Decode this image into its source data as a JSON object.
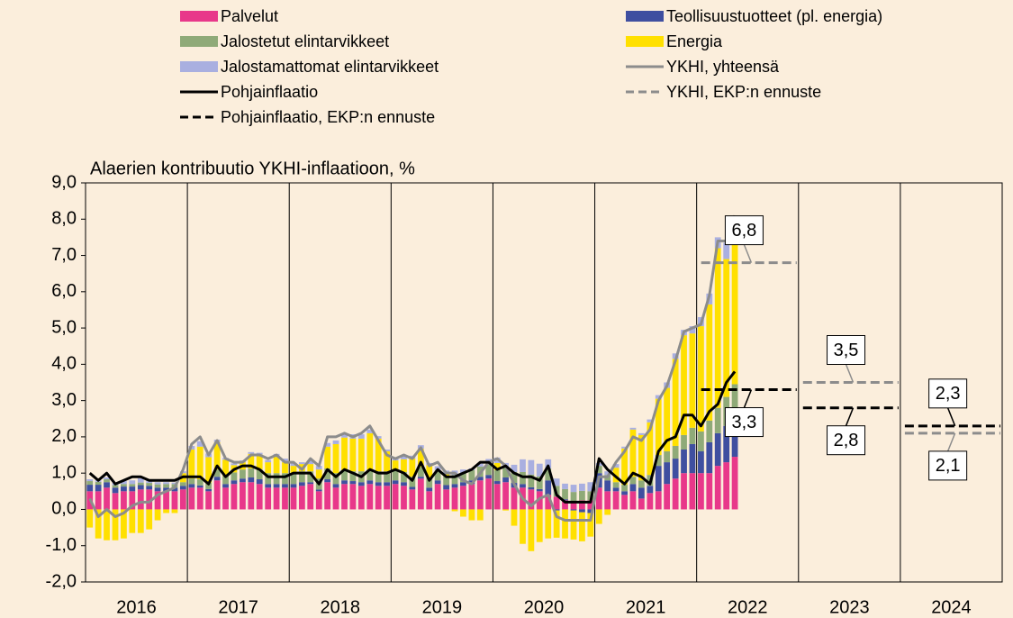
{
  "chart_data": {
    "type": "bar",
    "title": "Alaerien kontribuutio YKHI-inflaatioon, %",
    "x": [
      2016.042,
      2016.125,
      2016.208,
      2016.292,
      2016.375,
      2016.458,
      2016.542,
      2016.625,
      2016.708,
      2016.792,
      2016.875,
      2016.958,
      2017.042,
      2017.125,
      2017.208,
      2017.292,
      2017.375,
      2017.458,
      2017.542,
      2017.625,
      2017.708,
      2017.792,
      2017.875,
      2017.958,
      2018.042,
      2018.125,
      2018.208,
      2018.292,
      2018.375,
      2018.458,
      2018.542,
      2018.625,
      2018.708,
      2018.792,
      2018.875,
      2018.958,
      2019.042,
      2019.125,
      2019.208,
      2019.292,
      2019.375,
      2019.458,
      2019.542,
      2019.625,
      2019.708,
      2019.792,
      2019.875,
      2019.958,
      2020.042,
      2020.125,
      2020.208,
      2020.292,
      2020.375,
      2020.458,
      2020.542,
      2020.625,
      2020.708,
      2020.792,
      2020.875,
      2020.958,
      2021.042,
      2021.125,
      2021.208,
      2021.292,
      2021.375,
      2021.458,
      2021.542,
      2021.625,
      2021.708,
      2021.792,
      2021.875,
      2021.958,
      2022.042,
      2022.125,
      2022.208,
      2022.292,
      2022.375
    ],
    "series": [
      {
        "name": "Palvelut",
        "type": "bar",
        "color": "#e8388a",
        "values": [
          0.5,
          0.5,
          0.6,
          0.45,
          0.5,
          0.5,
          0.55,
          0.55,
          0.5,
          0.5,
          0.5,
          0.55,
          0.6,
          0.6,
          0.5,
          0.8,
          0.6,
          0.7,
          0.75,
          0.75,
          0.7,
          0.6,
          0.6,
          0.6,
          0.6,
          0.65,
          0.7,
          0.5,
          0.75,
          0.6,
          0.7,
          0.7,
          0.65,
          0.7,
          0.65,
          0.65,
          0.7,
          0.65,
          0.55,
          0.85,
          0.5,
          0.7,
          0.55,
          0.6,
          0.65,
          0.7,
          0.8,
          0.85,
          0.7,
          0.75,
          0.6,
          0.6,
          0.55,
          0.5,
          0.4,
          0.35,
          0.25,
          0.2,
          0.25,
          0.25,
          0.6,
          0.5,
          0.5,
          0.4,
          0.5,
          0.3,
          0.45,
          0.5,
          0.7,
          0.85,
          1.0,
          1.0,
          1.0,
          1.0,
          1.2,
          1.3,
          1.45
        ]
      },
      {
        "name": "Teollisuustuotteet (pl. energia)",
        "type": "bar",
        "color": "#3f4fa0",
        "values": [
          0.18,
          0.18,
          0.15,
          0.15,
          0.13,
          0.13,
          0.12,
          0.1,
          0.1,
          0.1,
          0.1,
          0.1,
          0.1,
          0.06,
          0.06,
          0.1,
          0.1,
          0.1,
          0.1,
          0.13,
          0.13,
          0.1,
          0.1,
          0.1,
          0.1,
          0.1,
          0.05,
          0.05,
          0.08,
          0.1,
          0.1,
          0.08,
          0.1,
          0.1,
          0.1,
          0.1,
          0.1,
          0.1,
          0.07,
          0.05,
          0.1,
          0.1,
          0.12,
          0.1,
          0.1,
          0.1,
          0.1,
          0.1,
          0.08,
          0.13,
          0.13,
          0.1,
          0.06,
          0.06,
          0.4,
          -0.03,
          0.03,
          -0.03,
          -0.08,
          -0.1,
          0.4,
          0.3,
          0.1,
          0.1,
          0.2,
          0.3,
          0.2,
          0.7,
          0.6,
          0.55,
          0.65,
          0.8,
          0.6,
          0.85,
          0.9,
          1.0,
          1.1
        ]
      },
      {
        "name": "Jalostetut elintarvikkeet",
        "type": "bar",
        "color": "#8faa78",
        "values": [
          0.1,
          0.08,
          0.08,
          0.07,
          0.07,
          0.07,
          0.07,
          0.08,
          0.09,
          0.1,
          0.1,
          0.1,
          0.15,
          0.17,
          0.18,
          0.2,
          0.22,
          0.22,
          0.25,
          0.25,
          0.28,
          0.3,
          0.3,
          0.3,
          0.3,
          0.3,
          0.3,
          0.3,
          0.3,
          0.3,
          0.28,
          0.27,
          0.3,
          0.3,
          0.3,
          0.3,
          0.3,
          0.28,
          0.28,
          0.27,
          0.27,
          0.25,
          0.25,
          0.25,
          0.25,
          0.28,
          0.28,
          0.3,
          0.3,
          0.3,
          0.3,
          0.33,
          0.35,
          0.35,
          0.33,
          0.3,
          0.28,
          0.28,
          0.26,
          0.25,
          0.2,
          0.15,
          0.15,
          0.18,
          0.2,
          0.2,
          0.3,
          0.3,
          0.3,
          0.35,
          0.4,
          0.45,
          0.55,
          0.6,
          0.7,
          0.8,
          0.9
        ]
      },
      {
        "name": "Energia",
        "type": "bar",
        "color": "#ffe000",
        "values": [
          -0.5,
          -0.8,
          -0.85,
          -0.85,
          -0.8,
          -0.65,
          -0.65,
          -0.55,
          -0.3,
          -0.1,
          -0.1,
          0.25,
          0.8,
          0.9,
          0.7,
          0.75,
          0.45,
          0.2,
          0.2,
          0.4,
          0.4,
          0.3,
          0.45,
          0.3,
          0.2,
          0.2,
          0.2,
          0.25,
          0.6,
          0.8,
          0.9,
          0.9,
          0.9,
          1.0,
          0.9,
          0.55,
          0.25,
          0.35,
          0.5,
          0.5,
          0.35,
          0.02,
          0.05,
          -0.05,
          -0.2,
          -0.3,
          -0.3,
          0.02,
          0.2,
          -0.03,
          -0.45,
          -0.95,
          -1.15,
          -0.9,
          -0.8,
          -0.75,
          -0.8,
          -0.8,
          -0.8,
          -0.65,
          -0.4,
          -0.15,
          0.4,
          1.0,
          1.3,
          1.25,
          1.45,
          1.55,
          1.75,
          2.4,
          2.75,
          2.6,
          2.9,
          3.2,
          4.4,
          3.8,
          4.1
        ]
      },
      {
        "name": "Jalostamattomat elintarvikkeet",
        "type": "bar",
        "color": "#a9afe0",
        "values": [
          0.05,
          0.04,
          0.05,
          0.06,
          0.08,
          0.1,
          0.12,
          0.1,
          0.06,
          0.05,
          0.04,
          0.05,
          0.1,
          0.15,
          0.1,
          0.07,
          0.05,
          0.05,
          0.05,
          0.05,
          0.05,
          0.06,
          0.08,
          0.1,
          0.08,
          0.05,
          0.1,
          0.1,
          0.1,
          0.1,
          0.1,
          0.12,
          0.12,
          0.1,
          0.07,
          0.05,
          0.07,
          0.1,
          0.08,
          0.1,
          0.06,
          0.12,
          0.1,
          0.12,
          0.1,
          0.05,
          0.08,
          0.12,
          0.15,
          0.1,
          0.2,
          0.35,
          0.4,
          0.35,
          0.25,
          0.2,
          0.15,
          0.2,
          0.2,
          0.25,
          0.08,
          0.1,
          0.1,
          0.05,
          0.05,
          0.05,
          0.08,
          0.1,
          0.15,
          0.15,
          0.15,
          0.2,
          0.25,
          0.3,
          0.3,
          0.45,
          0.45
        ]
      },
      {
        "name": "YKHI, yhteensä",
        "type": "line",
        "color": "#8c8c8c",
        "values": [
          0.3,
          -0.2,
          0.0,
          -0.2,
          -0.1,
          0.1,
          0.2,
          0.2,
          0.4,
          0.5,
          0.6,
          1.1,
          1.8,
          2.0,
          1.5,
          1.9,
          1.4,
          1.3,
          1.3,
          1.5,
          1.5,
          1.4,
          1.5,
          1.3,
          1.3,
          1.1,
          1.4,
          1.2,
          2.0,
          2.0,
          2.1,
          2.0,
          2.1,
          2.3,
          1.9,
          1.5,
          1.4,
          1.5,
          1.4,
          1.7,
          1.2,
          1.3,
          1.0,
          1.0,
          0.8,
          0.7,
          1.0,
          1.3,
          1.4,
          1.2,
          0.7,
          0.3,
          0.1,
          0.3,
          0.4,
          -0.2,
          -0.3,
          -0.3,
          -0.3,
          -0.3,
          0.9,
          0.9,
          1.3,
          1.6,
          2.0,
          1.9,
          2.2,
          3.0,
          3.4,
          4.1,
          4.9,
          5.0,
          5.1,
          5.9,
          7.4,
          7.4,
          8.1
        ]
      },
      {
        "name": "Pohjainflaatio",
        "type": "line",
        "color": "#000000",
        "values": [
          1.0,
          0.8,
          1.0,
          0.7,
          0.8,
          0.9,
          0.9,
          0.8,
          0.8,
          0.8,
          0.8,
          0.9,
          0.9,
          0.9,
          0.7,
          1.2,
          0.9,
          1.1,
          1.2,
          1.2,
          1.1,
          0.9,
          0.9,
          0.9,
          1.0,
          1.0,
          1.0,
          0.7,
          1.1,
          0.9,
          1.1,
          1.0,
          0.9,
          1.1,
          1.0,
          1.0,
          1.1,
          1.0,
          0.8,
          1.3,
          0.8,
          1.1,
          0.9,
          0.9,
          1.0,
          1.1,
          1.3,
          1.3,
          1.1,
          1.2,
          1.0,
          0.9,
          0.9,
          0.8,
          1.2,
          0.4,
          0.2,
          0.2,
          0.2,
          0.2,
          1.4,
          1.1,
          0.9,
          0.7,
          1.0,
          0.9,
          0.7,
          1.6,
          1.9,
          2.0,
          2.6,
          2.6,
          2.3,
          2.7,
          2.9,
          3.5,
          3.8
        ]
      },
      {
        "name": "YKHI, EKP:n ennuste",
        "type": "forecast",
        "color": "#8c8c8c",
        "x": [
          2022,
          2023,
          2024
        ],
        "values": [
          6.8,
          3.5,
          2.1
        ],
        "value_labels": [
          "6,8",
          "3,5",
          "2,1"
        ]
      },
      {
        "name": "Pohjainflaatio, EKP:n ennuste",
        "type": "forecast",
        "color": "#000000",
        "x": [
          2022,
          2023,
          2024
        ],
        "values": [
          3.3,
          2.8,
          2.3
        ],
        "value_labels": [
          "3,3",
          "2,8",
          "2,3"
        ]
      }
    ],
    "xlim": [
      2016,
      2025
    ],
    "xticks": [
      2016,
      2017,
      2018,
      2019,
      2020,
      2021,
      2022,
      2023,
      2024
    ],
    "ylim": [
      -2,
      9
    ],
    "yticks": [
      {
        "value": -2,
        "label": "-2,0"
      },
      {
        "value": -1,
        "label": "-1,0"
      },
      {
        "value": 0,
        "label": "0,0"
      },
      {
        "value": 1,
        "label": "1,0"
      },
      {
        "value": 2,
        "label": "2,0"
      },
      {
        "value": 3,
        "label": "3,0"
      },
      {
        "value": 4,
        "label": "4,0"
      },
      {
        "value": 5,
        "label": "5,0"
      },
      {
        "value": 6,
        "label": "6,0"
      },
      {
        "value": 7,
        "label": "7,0"
      },
      {
        "value": 8,
        "label": "8,0"
      },
      {
        "value": 9,
        "label": "9,0"
      }
    ],
    "legend": "top"
  }
}
